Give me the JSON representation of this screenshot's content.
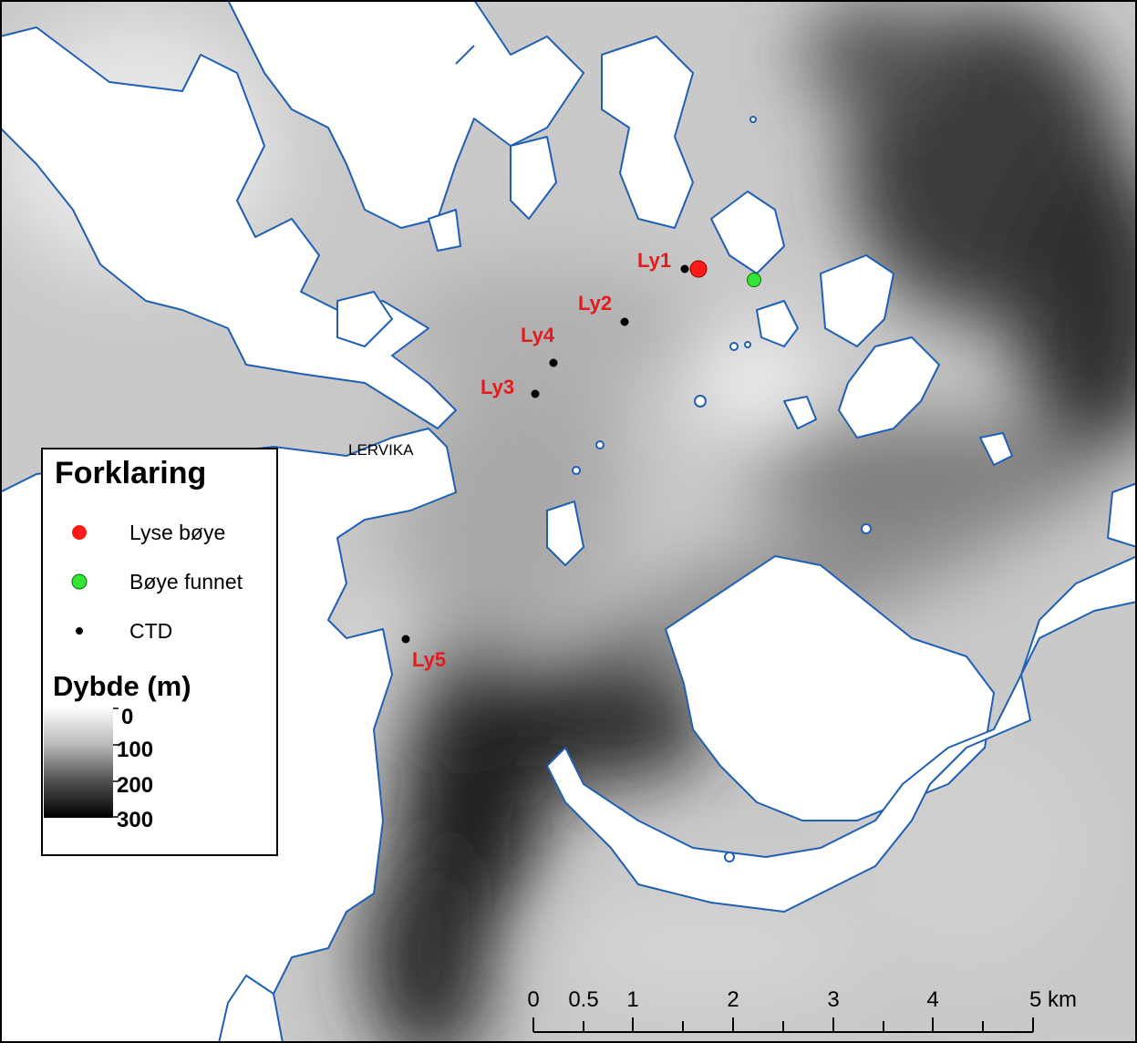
{
  "map": {
    "place_label": "LERVIKA",
    "stations": [
      {
        "id": "ly1",
        "label": "Ly1"
      },
      {
        "id": "ly2",
        "label": "Ly2"
      },
      {
        "id": "ly3",
        "label": "Ly3"
      },
      {
        "id": "ly4",
        "label": "Ly4"
      },
      {
        "id": "ly5",
        "label": "Ly5"
      }
    ]
  },
  "legend": {
    "title": "Forklaring",
    "items": [
      {
        "label": "Lyse bøye",
        "symbol": "red-dot",
        "color": "#ff1a1a"
      },
      {
        "label": "Bøye funnet",
        "symbol": "green-dot",
        "color": "#33e633"
      },
      {
        "label": "CTD",
        "symbol": "black-dot",
        "color": "#000000"
      }
    ],
    "depth_title": "Dybde (m)",
    "depth_ticks": [
      "0",
      "100",
      "200",
      "300"
    ]
  },
  "scale_bar": {
    "labels": [
      "0",
      "0.5",
      "1",
      "2",
      "3",
      "4",
      "5 km"
    ]
  },
  "colors": {
    "coastline": "#1f5fb4",
    "station_label": "#e41a1c",
    "land": "#ffffff"
  }
}
